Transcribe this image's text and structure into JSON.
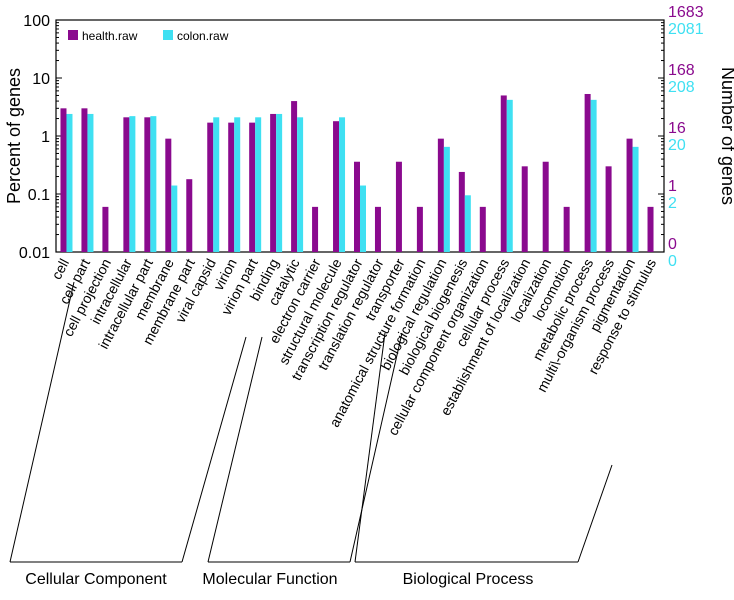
{
  "chart_data": {
    "type": "bar",
    "ylabel": "Percent of genes",
    "y2label": "Number of genes",
    "yscale": "log",
    "ylim": [
      0.01,
      100
    ],
    "yticks": [
      "0.01",
      "0.1",
      "1",
      "10",
      "100"
    ],
    "right_ticks": [
      {
        "health": "1683",
        "colon": "2081",
        "value": 100
      },
      {
        "health": "168",
        "colon": "208",
        "value": 10
      },
      {
        "health": "16",
        "colon": "20",
        "value": 1
      },
      {
        "health": "1",
        "colon": "2",
        "value": 0.1
      },
      {
        "health": "0",
        "colon": "0",
        "value": 0.01
      }
    ],
    "categories": [
      "cell",
      "cell part",
      "cell projection",
      "intracellular",
      "intracellular part",
      "membrane",
      "membrane part",
      "viral capsid",
      "virion",
      "virion part",
      "binding",
      "catalytic",
      "electron carrier",
      "structural molecule",
      "transcription regulator",
      "translation regulator",
      "transporter",
      "anatomical structure formation",
      "biological regulation",
      "biological biogenesis",
      "cellular component organization",
      "cellular process",
      "establishment of localization",
      "localization",
      "locomotion",
      "metabolic process",
      "multi\\-organism process",
      "pigmentation",
      "response to stimulus"
    ],
    "series": [
      {
        "name": "health.raw",
        "color": "#8a0a8e",
        "values": [
          3.0,
          3.0,
          0.06,
          2.1,
          2.1,
          0.9,
          0.18,
          1.7,
          1.7,
          1.7,
          2.4,
          4.0,
          0.06,
          1.8,
          0.36,
          0.06,
          0.36,
          0.06,
          0.9,
          0.24,
          0.06,
          5.0,
          0.3,
          0.36,
          0.06,
          5.3,
          0.3,
          0.9,
          0.06
        ]
      },
      {
        "name": "colon.raw",
        "color": "#3fe0f2",
        "values": [
          2.4,
          2.4,
          null,
          2.2,
          2.2,
          0.14,
          null,
          2.1,
          2.1,
          2.1,
          2.4,
          2.1,
          null,
          2.1,
          0.14,
          null,
          null,
          null,
          0.65,
          0.095,
          null,
          4.2,
          null,
          null,
          null,
          4.2,
          null,
          0.65,
          null
        ]
      }
    ],
    "groups": [
      {
        "label": "Cellular Component"
      },
      {
        "label": "Molecular Function"
      },
      {
        "label": "Biological Process"
      }
    ],
    "legend_position": "top-left"
  }
}
